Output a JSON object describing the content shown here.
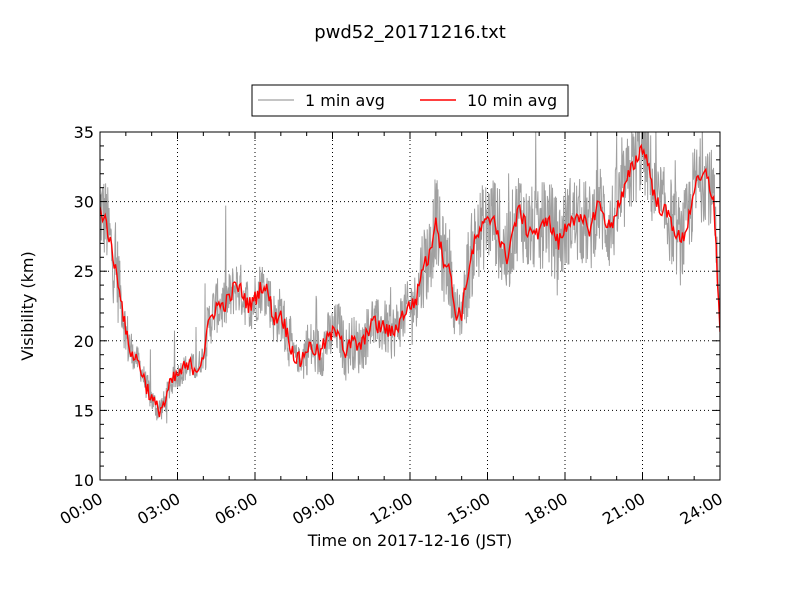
{
  "chart_data": {
    "type": "line",
    "title": "pwd52_20171216.txt",
    "xlabel": "Time on 2017-12-16 (JST)",
    "ylabel": "Visibility (km)",
    "xlim": [
      "00:00",
      "24:00"
    ],
    "ylim": [
      10,
      35
    ],
    "x_ticks": [
      "00:00",
      "03:00",
      "06:00",
      "09:00",
      "12:00",
      "15:00",
      "18:00",
      "21:00",
      "24:00"
    ],
    "y_ticks": [
      "10",
      "15",
      "20",
      "25",
      "30",
      "35"
    ],
    "grid": true,
    "legend_position": "top-center",
    "series": [
      {
        "name": "1 min avg",
        "color": "#a0a0a0",
        "style": "noisy",
        "x": [
          "00:00",
          "00:15",
          "00:30",
          "00:45",
          "01:00",
          "01:15",
          "01:30",
          "01:45",
          "02:00",
          "02:15",
          "02:30",
          "02:45",
          "03:00",
          "03:15",
          "03:30",
          "03:45",
          "04:00",
          "04:15",
          "04:30",
          "04:45",
          "05:00",
          "05:15",
          "05:30",
          "05:45",
          "06:00",
          "06:15",
          "06:30",
          "06:45",
          "07:00",
          "07:15",
          "07:30",
          "07:45",
          "08:00",
          "08:15",
          "08:30",
          "08:45",
          "09:00",
          "09:15",
          "09:30",
          "09:45",
          "10:00",
          "10:15",
          "10:30",
          "10:45",
          "11:00",
          "11:15",
          "11:30",
          "11:45",
          "12:00",
          "12:15",
          "12:30",
          "12:45",
          "13:00",
          "13:15",
          "13:30",
          "13:45",
          "14:00",
          "14:15",
          "14:30",
          "14:45",
          "15:00",
          "15:15",
          "15:30",
          "15:45",
          "16:00",
          "16:15",
          "16:30",
          "16:45",
          "17:00",
          "17:15",
          "17:30",
          "17:45",
          "18:00",
          "18:15",
          "18:30",
          "18:45",
          "19:00",
          "19:15",
          "19:30",
          "19:45",
          "20:00",
          "20:15",
          "20:30",
          "20:45",
          "21:00",
          "21:15",
          "21:30",
          "21:45",
          "22:00",
          "22:15",
          "22:30",
          "22:45",
          "23:00",
          "23:15",
          "23:30",
          "23:45",
          "24:00"
        ],
        "values": [
          29.5,
          28.5,
          26,
          24,
          20.5,
          19,
          18.5,
          17,
          15.8,
          15,
          15.5,
          17,
          17.5,
          18,
          18.2,
          18,
          19,
          21.5,
          22.5,
          22.5,
          23,
          24,
          23.5,
          22.5,
          23,
          24,
          23.5,
          21.5,
          22,
          20.5,
          19,
          18.5,
          19.5,
          19.5,
          19,
          20,
          20.5,
          21,
          19,
          20,
          19.5,
          20,
          21.5,
          21,
          21,
          20.5,
          21,
          22,
          22.5,
          23,
          25.5,
          26,
          29,
          26,
          25.5,
          22,
          22,
          25,
          27,
          28,
          28.5,
          29,
          27,
          26,
          28,
          29.5,
          28,
          28,
          27.5,
          29,
          28,
          27,
          28,
          29,
          28.5,
          28.5,
          28,
          30,
          29,
          28,
          29.5,
          30.5,
          32,
          33,
          34,
          32.5,
          30,
          29.5,
          29,
          28,
          27,
          28.5,
          31,
          31.5,
          32,
          30,
          21
        ]
      },
      {
        "name": "10 min avg",
        "color": "#ff0000",
        "style": "smooth",
        "x": [
          "00:00",
          "00:15",
          "00:30",
          "00:45",
          "01:00",
          "01:15",
          "01:30",
          "01:45",
          "02:00",
          "02:15",
          "02:30",
          "02:45",
          "03:00",
          "03:15",
          "03:30",
          "03:45",
          "04:00",
          "04:15",
          "04:30",
          "04:45",
          "05:00",
          "05:15",
          "05:30",
          "05:45",
          "06:00",
          "06:15",
          "06:30",
          "06:45",
          "07:00",
          "07:15",
          "07:30",
          "07:45",
          "08:00",
          "08:15",
          "08:30",
          "08:45",
          "09:00",
          "09:15",
          "09:30",
          "09:45",
          "10:00",
          "10:15",
          "10:30",
          "10:45",
          "11:00",
          "11:15",
          "11:30",
          "11:45",
          "12:00",
          "12:15",
          "12:30",
          "12:45",
          "13:00",
          "13:15",
          "13:30",
          "13:45",
          "14:00",
          "14:15",
          "14:30",
          "14:45",
          "15:00",
          "15:15",
          "15:30",
          "15:45",
          "16:00",
          "16:15",
          "16:30",
          "16:45",
          "17:00",
          "17:15",
          "17:30",
          "17:45",
          "18:00",
          "18:15",
          "18:30",
          "18:45",
          "19:00",
          "19:15",
          "19:30",
          "19:45",
          "20:00",
          "20:15",
          "20:30",
          "20:45",
          "21:00",
          "21:15",
          "21:30",
          "21:45",
          "22:00",
          "22:15",
          "22:30",
          "22:45",
          "23:00",
          "23:15",
          "23:30",
          "23:45",
          "24:00"
        ],
        "values": [
          29.5,
          28.5,
          26,
          24,
          20.5,
          19,
          18.5,
          17,
          15.8,
          15,
          15.5,
          17,
          17.5,
          18,
          18.2,
          18,
          19,
          21.5,
          22.5,
          22.5,
          23,
          24,
          23.5,
          22.5,
          23,
          24,
          23.5,
          21.5,
          22,
          20.5,
          19,
          18.5,
          19.5,
          19.5,
          19,
          20,
          20.5,
          21,
          19,
          20,
          19.5,
          20,
          21.5,
          21,
          21,
          20.5,
          21,
          22,
          22.5,
          23,
          25.5,
          26,
          29,
          26,
          25.5,
          22,
          22,
          25,
          27,
          28,
          28.5,
          29,
          27,
          26,
          28,
          29.5,
          28,
          28,
          27.5,
          29,
          28,
          27,
          28,
          29,
          28.5,
          28.5,
          28,
          30,
          29,
          28,
          29.5,
          30.5,
          32,
          33,
          34,
          32.5,
          30,
          29.5,
          29,
          28,
          27,
          28.5,
          31,
          31.5,
          32,
          30,
          21
        ]
      }
    ]
  }
}
